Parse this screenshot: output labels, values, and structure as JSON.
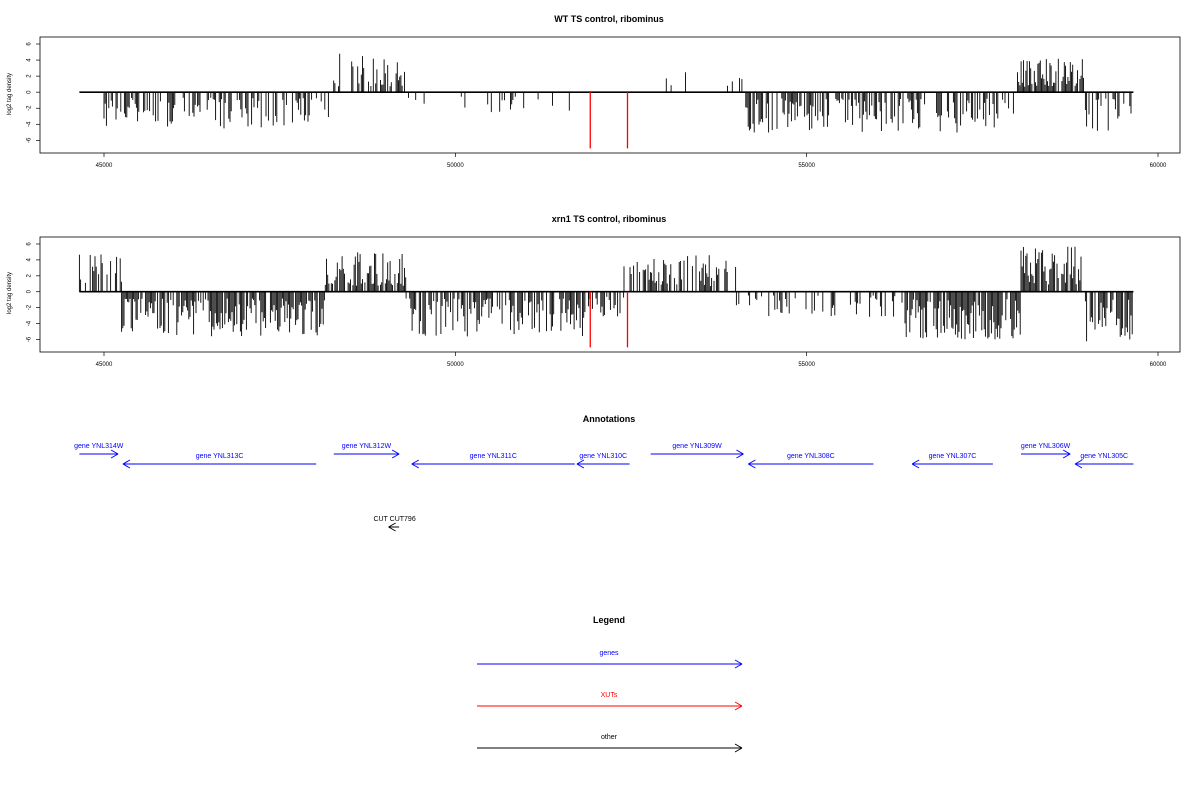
{
  "colors": {
    "bar": "#000000",
    "highlight": "#ff0000",
    "genes": "#0000ff",
    "xuts": "#ff0000",
    "other": "#000000"
  },
  "chart_data": [
    {
      "type": "bar",
      "title": "WT TS control, ribominus",
      "xlabel": "",
      "ylabel": "log2 tag density",
      "xlim": [
        44500,
        60100
      ],
      "ylim": [
        -7.2,
        6.5
      ],
      "x_ticks": [
        45000,
        50000,
        55000,
        60000
      ],
      "y_ticks": [
        6,
        4,
        2,
        0,
        -2,
        -4,
        -6
      ],
      "baseline_range": [
        44650,
        59650
      ],
      "segments": [
        {
          "from": 44650,
          "to": 45000,
          "sign": 1,
          "max": 2.4,
          "density": 0.03
        },
        {
          "from": 45000,
          "to": 48200,
          "sign": -1,
          "max": 4.6,
          "density": 0.5
        },
        {
          "from": 48200,
          "to": 49300,
          "sign": 1,
          "max": 4.9,
          "density": 0.45
        },
        {
          "from": 49300,
          "to": 51900,
          "sign": -1,
          "max": 2.6,
          "density": 0.12
        },
        {
          "from": 52900,
          "to": 54100,
          "sign": 1,
          "max": 2.6,
          "density": 0.12
        },
        {
          "from": 54100,
          "to": 58000,
          "sign": -1,
          "max": 5.2,
          "density": 0.55
        },
        {
          "from": 58000,
          "to": 58950,
          "sign": 1,
          "max": 4.3,
          "density": 0.85
        },
        {
          "from": 58950,
          "to": 59650,
          "sign": -1,
          "max": 5.0,
          "density": 0.4
        }
      ],
      "highlight_bars": [
        {
          "x": 51920,
          "y": -7.0
        },
        {
          "x": 52450,
          "y": -7.0
        }
      ]
    },
    {
      "type": "bar",
      "title": "xrn1 TS control, ribominus",
      "xlabel": "",
      "ylabel": "log2 tag density",
      "xlim": [
        44500,
        60100
      ],
      "ylim": [
        -7.2,
        6.5
      ],
      "x_ticks": [
        45000,
        50000,
        55000,
        60000
      ],
      "y_ticks": [
        6,
        4,
        2,
        0,
        -2,
        -4,
        -6
      ],
      "baseline_range": [
        44650,
        59650
      ],
      "segments": [
        {
          "from": 44650,
          "to": 45250,
          "sign": 1,
          "max": 5.1,
          "density": 0.45
        },
        {
          "from": 45250,
          "to": 48150,
          "sign": -1,
          "max": 5.6,
          "density": 0.8
        },
        {
          "from": 48150,
          "to": 49300,
          "sign": 1,
          "max": 5.0,
          "density": 0.85
        },
        {
          "from": 49300,
          "to": 51900,
          "sign": -1,
          "max": 5.7,
          "density": 0.7
        },
        {
          "from": 51900,
          "to": 52400,
          "sign": -1,
          "max": 3.5,
          "density": 0.45
        },
        {
          "from": 52400,
          "to": 54000,
          "sign": 1,
          "max": 4.6,
          "density": 0.55
        },
        {
          "from": 54000,
          "to": 56400,
          "sign": -1,
          "max": 3.2,
          "density": 0.25
        },
        {
          "from": 56400,
          "to": 58050,
          "sign": -1,
          "max": 6.0,
          "density": 0.85
        },
        {
          "from": 58050,
          "to": 58950,
          "sign": 1,
          "max": 5.8,
          "density": 0.85
        },
        {
          "from": 58950,
          "to": 59650,
          "sign": -1,
          "max": 6.6,
          "density": 0.8
        }
      ],
      "highlight_bars": [
        {
          "x": 51920,
          "y": -7.0
        },
        {
          "x": 52450,
          "y": -7.0
        }
      ]
    }
  ],
  "annotations": {
    "title": "Annotations",
    "features": [
      {
        "label": "gene YNL314W",
        "start": 44650,
        "end": 45200,
        "strand": "+",
        "kind": "genes",
        "row": 0
      },
      {
        "label": "gene YNL313C",
        "start": 45270,
        "end": 48020,
        "strand": "-",
        "kind": "genes",
        "row": 1
      },
      {
        "label": "gene YNL312W",
        "start": 48270,
        "end": 49200,
        "strand": "+",
        "kind": "genes",
        "row": 0
      },
      {
        "label": "gene YNL311C",
        "start": 49380,
        "end": 51700,
        "strand": "-",
        "kind": "genes",
        "row": 1
      },
      {
        "label": "gene YNL310C",
        "start": 51730,
        "end": 52480,
        "strand": "-",
        "kind": "genes",
        "row": 1
      },
      {
        "label": "gene YNL309W",
        "start": 52780,
        "end": 54100,
        "strand": "+",
        "kind": "genes",
        "row": 0
      },
      {
        "label": "gene YNL308C",
        "start": 54170,
        "end": 55950,
        "strand": "-",
        "kind": "genes",
        "row": 1
      },
      {
        "label": "gene YNL307C",
        "start": 56500,
        "end": 57650,
        "strand": "-",
        "kind": "genes",
        "row": 1
      },
      {
        "label": "gene YNL306W",
        "start": 58050,
        "end": 58750,
        "strand": "+",
        "kind": "genes",
        "row": 0
      },
      {
        "label": "gene YNL305C",
        "start": 58820,
        "end": 59650,
        "strand": "-",
        "kind": "genes",
        "row": 1
      },
      {
        "label": "CUT CUT796",
        "start": 49050,
        "end": 49200,
        "strand": "-",
        "kind": "other",
        "row": 2
      }
    ]
  },
  "legend": {
    "title": "Legend",
    "items": [
      {
        "label": "genes",
        "kind": "genes"
      },
      {
        "label": "XUTs",
        "kind": "xuts"
      },
      {
        "label": "other",
        "kind": "other"
      }
    ]
  }
}
